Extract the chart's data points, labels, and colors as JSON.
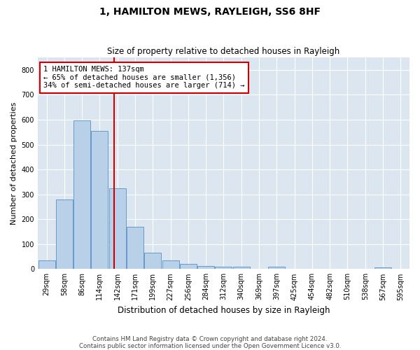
{
  "title": "1, HAMILTON MEWS, RAYLEIGH, SS6 8HF",
  "subtitle": "Size of property relative to detached houses in Rayleigh",
  "xlabel": "Distribution of detached houses by size in Rayleigh",
  "ylabel": "Number of detached properties",
  "bar_color": "#b8d0e8",
  "bar_edge_color": "#6699cc",
  "background_color": "#dce6f0",
  "fig_background": "#ffffff",
  "grid_color": "#ffffff",
  "categories": [
    "29sqm",
    "58sqm",
    "86sqm",
    "114sqm",
    "142sqm",
    "171sqm",
    "199sqm",
    "227sqm",
    "256sqm",
    "284sqm",
    "312sqm",
    "340sqm",
    "369sqm",
    "397sqm",
    "425sqm",
    "454sqm",
    "482sqm",
    "510sqm",
    "538sqm",
    "567sqm",
    "595sqm"
  ],
  "values": [
    35,
    280,
    598,
    555,
    325,
    170,
    65,
    35,
    20,
    12,
    8,
    8,
    0,
    8,
    0,
    0,
    0,
    0,
    0,
    7,
    0
  ],
  "ylim": [
    0,
    850
  ],
  "yticks": [
    0,
    100,
    200,
    300,
    400,
    500,
    600,
    700,
    800
  ],
  "bin_labels_numeric": [
    29,
    58,
    86,
    114,
    142,
    171,
    199,
    227,
    256,
    284,
    312,
    340,
    369,
    397,
    425,
    454,
    482,
    510,
    538,
    567,
    595
  ],
  "property_value": 137,
  "annotation_line1": "1 HAMILTON MEWS: 137sqm",
  "annotation_line2": "← 65% of detached houses are smaller (1,356)",
  "annotation_line3": "34% of semi-detached houses are larger (714) →",
  "annotation_box_color": "#ffffff",
  "annotation_box_edge": "#cc0000",
  "redline_color": "#cc0000",
  "footnote": "Contains HM Land Registry data © Crown copyright and database right 2024.\nContains public sector information licensed under the Open Government Licence v3.0."
}
